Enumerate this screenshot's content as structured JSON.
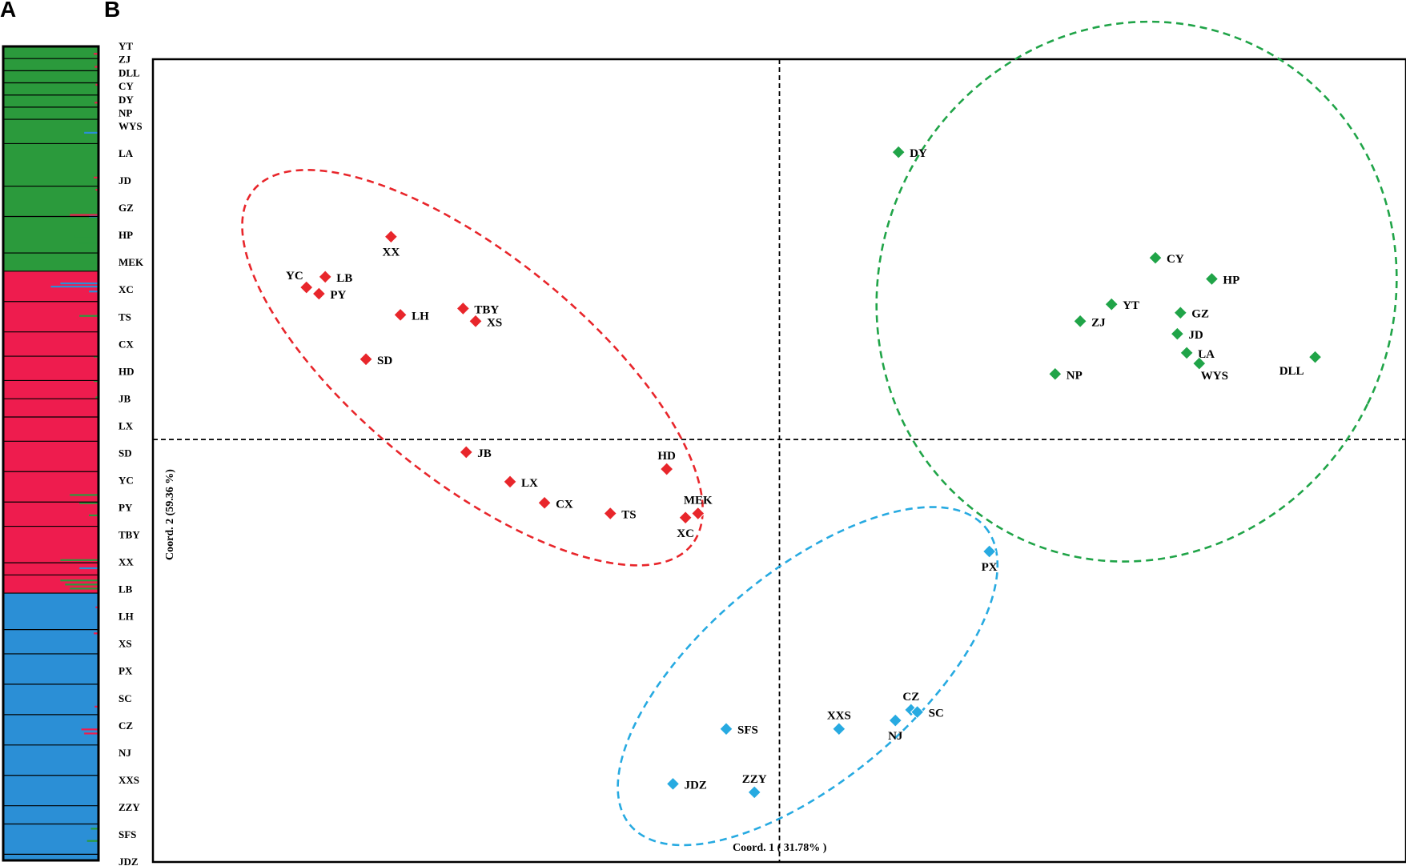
{
  "panels": {
    "a_label": "A",
    "b_label": "B"
  },
  "colors": {
    "green": "#2b9a3c",
    "red": "#ee1c4e",
    "blue": "#2b8fd6",
    "pcoa_green": "#20a448",
    "pcoa_red": "#e8262b",
    "pcoa_blue": "#27aae1"
  },
  "structure_plot": {
    "type": "stacked-bar",
    "k": 3,
    "clusters": [
      "green",
      "red",
      "blue"
    ],
    "populations": [
      {
        "name": "YT",
        "cluster": "green",
        "n": 2
      },
      {
        "name": "ZJ",
        "cluster": "green",
        "n": 2
      },
      {
        "name": "DLL",
        "cluster": "green",
        "n": 2
      },
      {
        "name": "CY",
        "cluster": "green",
        "n": 2
      },
      {
        "name": "DY",
        "cluster": "green",
        "n": 2
      },
      {
        "name": "NP",
        "cluster": "green",
        "n": 2
      },
      {
        "name": "WYS",
        "cluster": "green",
        "n": 4
      },
      {
        "name": "LA",
        "cluster": "green",
        "n": 7
      },
      {
        "name": "JD",
        "cluster": "green",
        "n": 5
      },
      {
        "name": "GZ",
        "cluster": "green",
        "n": 6
      },
      {
        "name": "HP",
        "cluster": "green",
        "n": 3
      },
      {
        "name": "MEK",
        "cluster": "red",
        "n": 5
      },
      {
        "name": "XC",
        "cluster": "red",
        "n": 5
      },
      {
        "name": "TS",
        "cluster": "red",
        "n": 4
      },
      {
        "name": "CX",
        "cluster": "red",
        "n": 4
      },
      {
        "name": "HD",
        "cluster": "red",
        "n": 3
      },
      {
        "name": "JB",
        "cluster": "red",
        "n": 3
      },
      {
        "name": "LX",
        "cluster": "red",
        "n": 4
      },
      {
        "name": "SD",
        "cluster": "red",
        "n": 5
      },
      {
        "name": "YC",
        "cluster": "red",
        "n": 5
      },
      {
        "name": "PY",
        "cluster": "red",
        "n": 4
      },
      {
        "name": "TBY",
        "cluster": "red",
        "n": 6
      },
      {
        "name": "XX",
        "cluster": "red",
        "n": 2
      },
      {
        "name": "LB",
        "cluster": "red",
        "n": 3
      },
      {
        "name": "LH",
        "cluster": "blue",
        "n": 6
      },
      {
        "name": "XS",
        "cluster": "blue",
        "n": 4
      },
      {
        "name": "PX",
        "cluster": "blue",
        "n": 5
      },
      {
        "name": "SC",
        "cluster": "blue",
        "n": 5
      },
      {
        "name": "CZ",
        "cluster": "blue",
        "n": 5
      },
      {
        "name": "NJ",
        "cluster": "blue",
        "n": 5
      },
      {
        "name": "XXS",
        "cluster": "blue",
        "n": 5
      },
      {
        "name": "ZZY",
        "cluster": "blue",
        "n": 3
      },
      {
        "name": "SFS",
        "cluster": "blue",
        "n": 5
      },
      {
        "name": "JDZ",
        "cluster": "blue",
        "n": 1
      }
    ],
    "admixture": [
      {
        "pos": 0.008,
        "cluster": "red",
        "amount": 0.05
      },
      {
        "pos": 0.024,
        "cluster": "red",
        "amount": 0.04
      },
      {
        "pos": 0.046,
        "cluster": "red",
        "amount": 0.03
      },
      {
        "pos": 0.068,
        "cluster": "red",
        "amount": 0.04
      },
      {
        "pos": 0.105,
        "cluster": "blue",
        "amount": 0.15
      },
      {
        "pos": 0.16,
        "cluster": "red",
        "amount": 0.05
      },
      {
        "pos": 0.175,
        "cluster": "red",
        "amount": 0.03
      },
      {
        "pos": 0.206,
        "cluster": "red",
        "amount": 0.3
      },
      {
        "pos": 0.208,
        "cluster": "blue",
        "amount": 0.1
      },
      {
        "pos": 0.212,
        "cluster": "green",
        "amount": 0.08
      },
      {
        "pos": 0.232,
        "cluster": "green",
        "amount": 0.25
      },
      {
        "pos": 0.24,
        "cluster": "green",
        "amount": 0.2
      },
      {
        "pos": 0.25,
        "cluster": "green",
        "amount": 0.05
      },
      {
        "pos": 0.265,
        "cluster": "green",
        "amount": 0.08
      },
      {
        "pos": 0.29,
        "cluster": "blue",
        "amount": 0.4
      },
      {
        "pos": 0.294,
        "cluster": "blue",
        "amount": 0.5
      },
      {
        "pos": 0.3,
        "cluster": "blue",
        "amount": 0.1
      },
      {
        "pos": 0.33,
        "cluster": "green",
        "amount": 0.2
      },
      {
        "pos": 0.38,
        "cluster": "green",
        "amount": 0.05
      },
      {
        "pos": 0.41,
        "cluster": "green",
        "amount": 0.05
      },
      {
        "pos": 0.43,
        "cluster": "green",
        "amount": 0.03
      },
      {
        "pos": 0.55,
        "cluster": "green",
        "amount": 0.3
      },
      {
        "pos": 0.56,
        "cluster": "green",
        "amount": 0.2
      },
      {
        "pos": 0.575,
        "cluster": "green",
        "amount": 0.1
      },
      {
        "pos": 0.63,
        "cluster": "green",
        "amount": 0.4
      },
      {
        "pos": 0.64,
        "cluster": "blue",
        "amount": 0.2
      },
      {
        "pos": 0.655,
        "cluster": "green",
        "amount": 0.4
      },
      {
        "pos": 0.66,
        "cluster": "green",
        "amount": 0.35
      },
      {
        "pos": 0.665,
        "cluster": "green",
        "amount": 0.3
      },
      {
        "pos": 0.688,
        "cluster": "red",
        "amount": 0.03
      },
      {
        "pos": 0.72,
        "cluster": "red",
        "amount": 0.05
      },
      {
        "pos": 0.81,
        "cluster": "red",
        "amount": 0.04
      },
      {
        "pos": 0.838,
        "cluster": "red",
        "amount": 0.18
      },
      {
        "pos": 0.843,
        "cluster": "red",
        "amount": 0.15
      },
      {
        "pos": 0.96,
        "cluster": "green",
        "amount": 0.08
      },
      {
        "pos": 0.975,
        "cluster": "green",
        "amount": 0.12
      }
    ]
  },
  "chart_data": {
    "type": "scatter",
    "xlabel": "Coord. 1 ( 31.78% )",
    "ylabel": "Coord. 2  (59.36 %)",
    "xlim": [
      -1,
      1
    ],
    "ylim": [
      -1,
      0.9
    ],
    "grid": false,
    "series": [
      {
        "color": "green",
        "points": [
          {
            "label": "DY",
            "x": 0.19,
            "y": 0.68,
            "label_pos": "right"
          },
          {
            "label": "CY",
            "x": 0.6,
            "y": 0.43,
            "label_pos": "right"
          },
          {
            "label": "HP",
            "x": 0.69,
            "y": 0.38,
            "label_pos": "right"
          },
          {
            "label": "YT",
            "x": 0.53,
            "y": 0.32,
            "label_pos": "right"
          },
          {
            "label": "GZ",
            "x": 0.64,
            "y": 0.3,
            "label_pos": "right"
          },
          {
            "label": "ZJ",
            "x": 0.48,
            "y": 0.28,
            "label_pos": "right"
          },
          {
            "label": "JD",
            "x": 0.635,
            "y": 0.25,
            "label_pos": "right"
          },
          {
            "label": "LA",
            "x": 0.65,
            "y": 0.205,
            "label_pos": "right"
          },
          {
            "label": "WYS",
            "x": 0.67,
            "y": 0.18,
            "label_pos": "below-right"
          },
          {
            "label": "DLL",
            "x": 0.855,
            "y": 0.195,
            "label_pos": "below-left"
          },
          {
            "label": "NP",
            "x": 0.44,
            "y": 0.155,
            "label_pos": "right"
          }
        ]
      },
      {
        "color": "red",
        "points": [
          {
            "label": "XX",
            "x": -0.62,
            "y": 0.48,
            "label_pos": "below"
          },
          {
            "label": "LB",
            "x": -0.725,
            "y": 0.385,
            "label_pos": "right"
          },
          {
            "label": "YC",
            "x": -0.755,
            "y": 0.36,
            "label_pos": "above-left"
          },
          {
            "label": "PY",
            "x": -0.735,
            "y": 0.345,
            "label_pos": "right"
          },
          {
            "label": "LH",
            "x": -0.605,
            "y": 0.295,
            "label_pos": "right"
          },
          {
            "label": "TBY",
            "x": -0.505,
            "y": 0.31,
            "label_pos": "right"
          },
          {
            "label": "XS",
            "x": -0.485,
            "y": 0.28,
            "label_pos": "right"
          },
          {
            "label": "SD",
            "x": -0.66,
            "y": 0.19,
            "label_pos": "right"
          },
          {
            "label": "JB",
            "x": -0.5,
            "y": -0.03,
            "label_pos": "right"
          },
          {
            "label": "HD",
            "x": -0.18,
            "y": -0.07,
            "label_pos": "above"
          },
          {
            "label": "LX",
            "x": -0.43,
            "y": -0.1,
            "label_pos": "right"
          },
          {
            "label": "CX",
            "x": -0.375,
            "y": -0.15,
            "label_pos": "right"
          },
          {
            "label": "TS",
            "x": -0.27,
            "y": -0.175,
            "label_pos": "right"
          },
          {
            "label": "MEK",
            "x": -0.13,
            "y": -0.175,
            "label_pos": "above"
          },
          {
            "label": "XC",
            "x": -0.15,
            "y": -0.185,
            "label_pos": "below"
          }
        ]
      },
      {
        "color": "blue",
        "points": [
          {
            "label": "PX",
            "x": 0.335,
            "y": -0.265,
            "label_pos": "below"
          },
          {
            "label": "CZ",
            "x": 0.21,
            "y": -0.64,
            "label_pos": "above"
          },
          {
            "label": "SC",
            "x": 0.22,
            "y": -0.645,
            "label_pos": "right"
          },
          {
            "label": "NJ",
            "x": 0.185,
            "y": -0.665,
            "label_pos": "below"
          },
          {
            "label": "XXS",
            "x": 0.095,
            "y": -0.685,
            "label_pos": "above"
          },
          {
            "label": "SFS",
            "x": -0.085,
            "y": -0.685,
            "label_pos": "right"
          },
          {
            "label": "JDZ",
            "x": -0.17,
            "y": -0.815,
            "label_pos": "right"
          },
          {
            "label": "ZZY",
            "x": -0.04,
            "y": -0.835,
            "label_pos": "above"
          }
        ]
      }
    ],
    "clusters": [
      {
        "color": "green",
        "cx": 0.57,
        "cy": 0.35,
        "rx": 0.41,
        "ry": 0.34,
        "rotation_deg": 26
      },
      {
        "color": "red",
        "cx": -0.49,
        "cy": 0.17,
        "rx": 0.45,
        "ry": 0.14,
        "rotation_deg": 39
      },
      {
        "color": "blue",
        "cx": 0.045,
        "cy": -0.56,
        "rx": 0.37,
        "ry": 0.13,
        "rotation_deg": -40
      }
    ]
  }
}
